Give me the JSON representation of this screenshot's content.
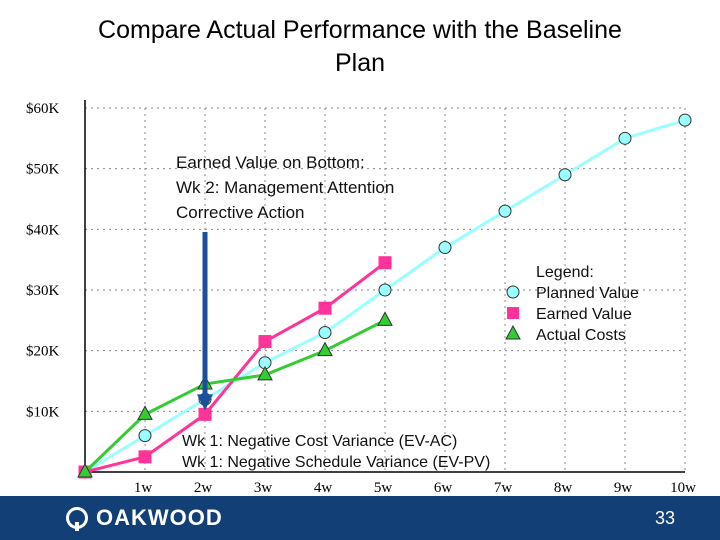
{
  "slide": {
    "title_line1": "Compare Actual Performance with the Baseline",
    "title_line2": "Plan",
    "page_number": "33",
    "logo_text": "OAKWOOD"
  },
  "colors": {
    "planned": "#99ffff",
    "earned": "#ff3399",
    "actual": "#33cc33",
    "arrow": "#1a4f9c",
    "footer": "#133f77"
  },
  "chart_data": {
    "type": "line",
    "title": "Compare Actual Performance with the Baseline Plan",
    "categories": [
      "1w",
      "2w",
      "3w",
      "4w",
      "5w",
      "6w",
      "7w",
      "8w",
      "9w",
      "10w"
    ],
    "x": [
      0,
      1,
      2,
      3,
      4,
      5,
      6,
      7,
      8,
      9,
      10
    ],
    "xlim": [
      0,
      10
    ],
    "ylim": [
      0,
      60000
    ],
    "y_ticks": [
      10000,
      20000,
      30000,
      40000,
      50000,
      60000
    ],
    "y_tick_labels": [
      "$10K",
      "$20K",
      "$30K",
      "$40K",
      "$50K",
      "$60K"
    ],
    "grid": true,
    "legend_position": "right",
    "series": [
      {
        "name": "Planned Value",
        "marker": "circle",
        "x": [
          0,
          1,
          2,
          3,
          4,
          5,
          6,
          7,
          8,
          9,
          10
        ],
        "values": [
          0,
          6000,
          12000,
          18000,
          23000,
          30000,
          37000,
          43000,
          49000,
          55000,
          58000
        ]
      },
      {
        "name": "Earned Value",
        "marker": "square",
        "x": [
          0,
          1,
          2,
          3,
          4,
          5
        ],
        "values": [
          0,
          2500,
          9500,
          21500,
          27000,
          34500
        ]
      },
      {
        "name": "Actual Costs",
        "marker": "triangle",
        "x": [
          0,
          1,
          2,
          3,
          4,
          5
        ],
        "values": [
          0,
          9500,
          14500,
          16000,
          20000,
          25000
        ]
      }
    ],
    "legend": {
      "title": "Legend:",
      "items": [
        "Planned Value",
        "Earned Value",
        "Actual Costs"
      ]
    },
    "annotations": {
      "top_note": [
        "Earned Value on Bottom:",
        "Wk 2: Management Attention",
        "Corrective Action"
      ],
      "bottom_note": [
        "Wk 1: Negative Cost Variance (EV-AC)",
        "Wk 1: Negative Schedule Variance (EV-PV)"
      ],
      "arrow_target": {
        "x": 2,
        "value": 9500
      }
    }
  }
}
